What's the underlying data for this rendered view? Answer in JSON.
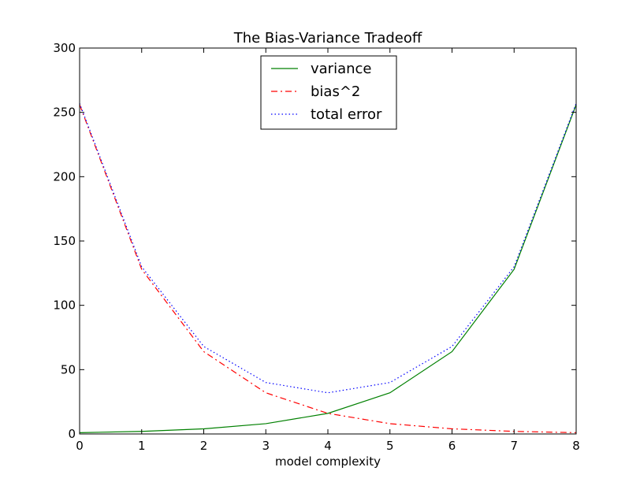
{
  "chart_data": {
    "type": "line",
    "title": "The Bias-Variance Tradeoff",
    "xlabel": "model complexity",
    "ylabel": "",
    "xlim": [
      0,
      8
    ],
    "ylim": [
      0,
      300
    ],
    "x_ticks": [
      0,
      1,
      2,
      3,
      4,
      5,
      6,
      7,
      8
    ],
    "y_ticks": [
      0,
      50,
      100,
      150,
      200,
      250,
      300
    ],
    "grid": false,
    "legend_position": "upper-center",
    "x": [
      0,
      1,
      2,
      3,
      4,
      5,
      6,
      7,
      8
    ],
    "series": [
      {
        "name": "variance",
        "values": [
          1,
          2,
          4,
          8,
          16,
          32,
          64,
          128,
          256
        ],
        "color": "#008000",
        "style": "solid"
      },
      {
        "name": "bias^2",
        "values": [
          256,
          128,
          64,
          32,
          16,
          8,
          4,
          2,
          1
        ],
        "color": "#ff0000",
        "style": "dashdot"
      },
      {
        "name": "total error",
        "values": [
          257,
          130,
          68,
          40,
          32,
          40,
          68,
          130,
          257
        ],
        "color": "#0000ff",
        "style": "dotted"
      }
    ]
  }
}
